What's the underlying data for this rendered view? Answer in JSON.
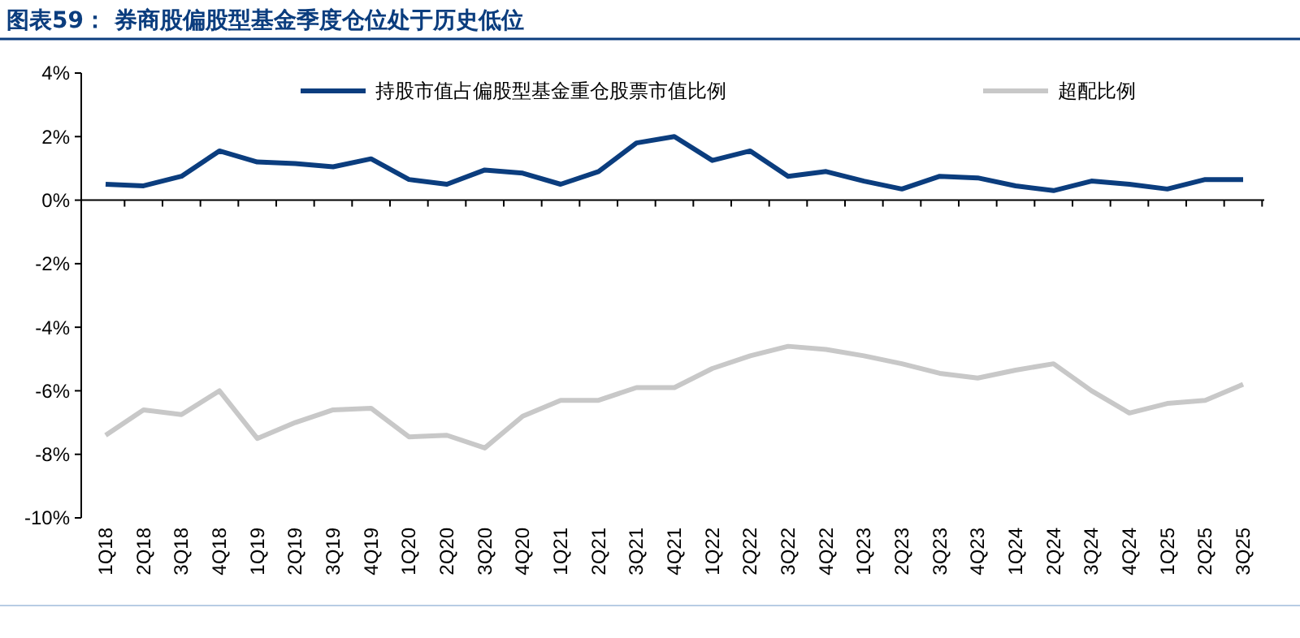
{
  "chart_data": {
    "type": "line",
    "title": "图表59：  券商股偏股型基金季度仓位处于历史低位",
    "categories": [
      "1Q18",
      "2Q18",
      "3Q18",
      "4Q18",
      "1Q19",
      "2Q19",
      "3Q19",
      "4Q19",
      "1Q20",
      "2Q20",
      "3Q20",
      "4Q20",
      "1Q21",
      "2Q21",
      "3Q21",
      "4Q21",
      "1Q22",
      "2Q22",
      "3Q22",
      "4Q22",
      "1Q23",
      "2Q23",
      "3Q23",
      "4Q23",
      "1Q24",
      "2Q24",
      "3Q24",
      "4Q24",
      "1Q25",
      "2Q25",
      "3Q25"
    ],
    "series": [
      {
        "name": "持股市值占偏股型基金重仓股票市值比例",
        "color": "#0b3d7e",
        "values": [
          0.5,
          0.45,
          0.75,
          1.55,
          1.2,
          1.15,
          1.05,
          1.3,
          0.65,
          0.5,
          0.95,
          0.85,
          0.5,
          0.9,
          1.8,
          2.0,
          1.25,
          1.55,
          0.75,
          0.9,
          0.6,
          0.35,
          0.75,
          0.7,
          0.45,
          0.3,
          0.6,
          0.5,
          0.35,
          0.65,
          0.65
        ]
      },
      {
        "name": "超配比例",
        "color": "#c8c8c8",
        "values": [
          -7.4,
          -6.6,
          -6.75,
          -6.0,
          -7.5,
          -7.0,
          -6.6,
          -6.55,
          -7.45,
          -7.4,
          -7.8,
          -6.8,
          -6.3,
          -6.3,
          -5.9,
          -5.9,
          -5.3,
          -4.9,
          -4.6,
          -4.7,
          -4.9,
          -5.15,
          -5.45,
          -5.6,
          -5.35,
          -5.15,
          -6.0,
          -6.7,
          -6.4,
          -6.3,
          -5.8
        ]
      }
    ],
    "ylim": [
      -10,
      4
    ],
    "yticks": [
      {
        "value": -10,
        "label": "-10%"
      },
      {
        "value": -8,
        "label": "-8%"
      },
      {
        "value": -6,
        "label": "-6%"
      },
      {
        "value": -4,
        "label": "-4%"
      },
      {
        "value": -2,
        "label": "-2%"
      },
      {
        "value": 0,
        "label": "0%"
      },
      {
        "value": 2,
        "label": "2%"
      },
      {
        "value": 4,
        "label": "4%"
      }
    ],
    "legend": "top",
    "marker": "none",
    "line_style": "solid"
  }
}
